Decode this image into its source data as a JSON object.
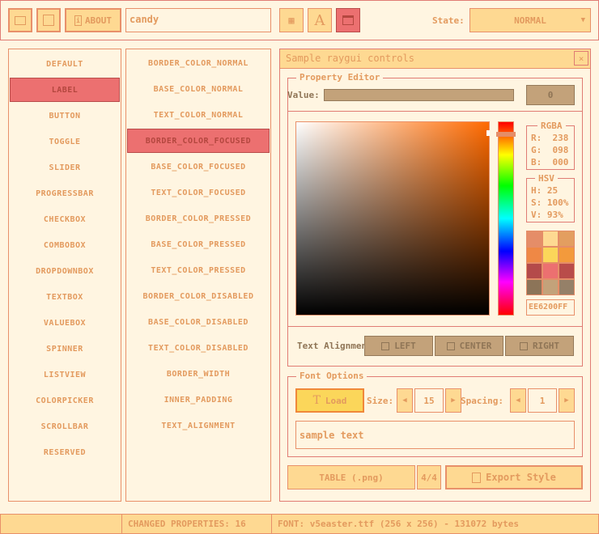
{
  "toolbar": {
    "about_label": "ABOUT",
    "style_name": "candy",
    "state_label": "State:",
    "state_value": "NORMAL"
  },
  "controls_list": [
    "DEFAULT",
    "LABEL",
    "BUTTON",
    "TOGGLE",
    "SLIDER",
    "PROGRESSBAR",
    "CHECKBOX",
    "COMBOBOX",
    "DROPDOWNBOX",
    "TEXTBOX",
    "VALUEBOX",
    "SPINNER",
    "LISTVIEW",
    "COLORPICKER",
    "SCROLLBAR",
    "RESERVED"
  ],
  "controls_selected": "LABEL",
  "properties_list": [
    "BORDER_COLOR_NORMAL",
    "BASE_COLOR_NORMAL",
    "TEXT_COLOR_NORMAL",
    "BORDER_COLOR_FOCUSED",
    "BASE_COLOR_FOCUSED",
    "TEXT_COLOR_FOCUSED",
    "BORDER_COLOR_PRESSED",
    "BASE_COLOR_PRESSED",
    "TEXT_COLOR_PRESSED",
    "BORDER_COLOR_DISABLED",
    "BASE_COLOR_DISABLED",
    "TEXT_COLOR_DISABLED",
    "BORDER_WIDTH",
    "INNER_PADDING",
    "TEXT_ALIGNMENT"
  ],
  "properties_selected": "BORDER_COLOR_FOCUSED",
  "window": {
    "title": "Sample raygui controls",
    "close": "×"
  },
  "property_editor": {
    "title": "Property Editor",
    "value_label": "Value:",
    "value": "0"
  },
  "color_picker": {
    "color": "#ee6200",
    "hue": 25,
    "rgba_title": "RGBA",
    "r": "R:  238",
    "g": "G:  098",
    "b": "B:  000",
    "hsv_title": "HSV",
    "h": "H: 25",
    "s": "S: 100%",
    "v": "V: 93%",
    "palette": [
      "#e58d68",
      "#fed992",
      "#e39e60",
      "#ef8845",
      "#fbd65a",
      "#f39a3c",
      "#b44a4a",
      "#ec7070",
      "#b94c4a",
      "#8c7458",
      "#c3a27a",
      "#958068"
    ],
    "hex": "EE6200FF"
  },
  "alignment": {
    "label": "Text Alignment",
    "left": "LEFT",
    "center": "CENTER",
    "right": "RIGHT"
  },
  "font_options": {
    "title": "Font Options",
    "load": "Load",
    "size_label": "Size:",
    "size": "15",
    "spacing_label": "Spacing:",
    "spacing": "1",
    "sample": "sample text"
  },
  "bottom": {
    "table": "TABLE (.png)",
    "page": "4/4",
    "export": "Export Style"
  },
  "status": {
    "changed": "CHANGED PROPERTIES: 16",
    "font": "FONT: v5easter.ttf (256 x 256) - 131072 bytes"
  }
}
